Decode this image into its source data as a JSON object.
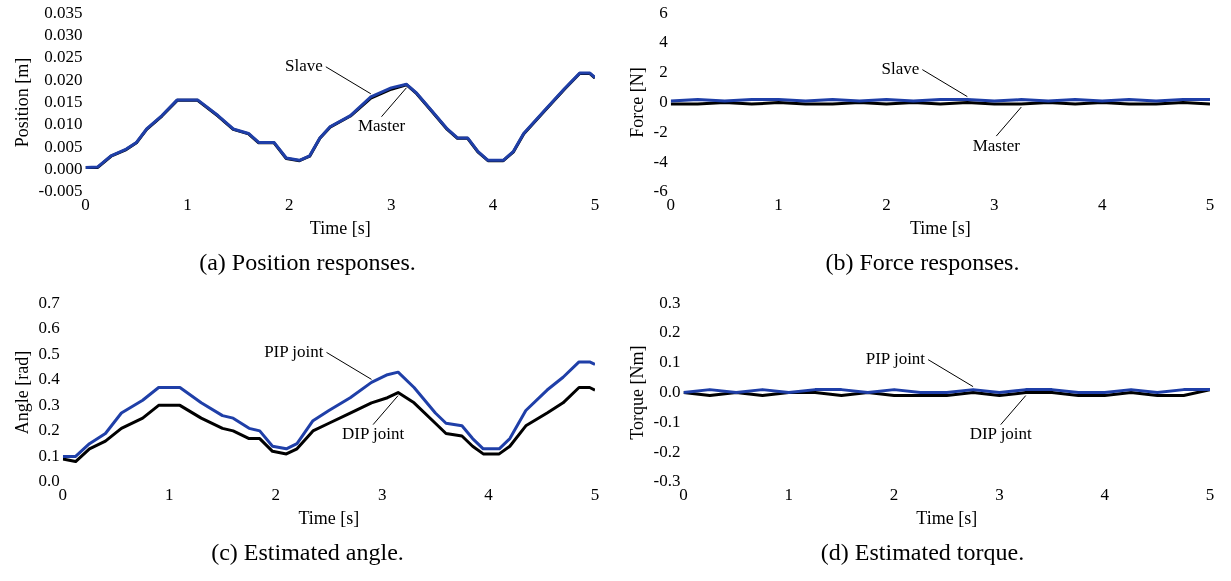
{
  "chart_data": [
    {
      "type": "line",
      "xlabel": "Time [s]",
      "ylabel": "Position [m]",
      "xlim": [
        0,
        5
      ],
      "xticks": [
        0,
        1,
        2,
        3,
        4,
        5
      ],
      "ylim": [
        -0.005,
        0.035
      ],
      "yticks": [
        -0.005,
        {
          "value": 0,
          "label": "0.000"
        },
        0.005,
        {
          "value": 0.01,
          "label": "0.010"
        },
        0.015,
        {
          "value": 0.02,
          "label": "0.020"
        },
        0.025,
        {
          "value": 0.03,
          "label": "0.030"
        },
        0.035
      ],
      "grid": false,
      "x": [
        0,
        0.12,
        0.25,
        0.4,
        0.5,
        0.6,
        0.75,
        0.9,
        1.1,
        1.3,
        1.45,
        1.6,
        1.7,
        1.85,
        1.97,
        2.1,
        2.2,
        2.3,
        2.4,
        2.6,
        2.8,
        3.0,
        3.15,
        3.25,
        3.4,
        3.55,
        3.65,
        3.75,
        3.85,
        3.95,
        4.1,
        4.2,
        4.3,
        4.5,
        4.7,
        4.85,
        4.95,
        5.0
      ],
      "series": [
        {
          "name": "Slave",
          "color": "#1f3fa8",
          "values": [
            0.0005,
            0.0006,
            0.0031,
            0.0046,
            0.0061,
            0.0091,
            0.0121,
            0.0156,
            0.0156,
            0.0121,
            0.0091,
            0.0081,
            0.0061,
            0.0061,
            0.0026,
            0.0021,
            0.0031,
            0.0071,
            0.0096,
            0.0121,
            0.0163,
            0.0183,
            0.0191,
            0.0171,
            0.0131,
            0.0091,
            0.0071,
            0.0071,
            0.0041,
            0.0021,
            0.0021,
            0.0041,
            0.0081,
            0.0131,
            0.0181,
            0.0216,
            0.0216,
            0.0206
          ]
        },
        {
          "name": "Master",
          "color": "#000000",
          "values": [
            0.0005,
            0.0005,
            0.003,
            0.0045,
            0.006,
            0.009,
            0.012,
            0.0155,
            0.0155,
            0.012,
            0.009,
            0.008,
            0.006,
            0.006,
            0.0025,
            0.002,
            0.003,
            0.007,
            0.0095,
            0.012,
            0.016,
            0.018,
            0.019,
            0.017,
            0.013,
            0.009,
            0.007,
            0.007,
            0.004,
            0.002,
            0.002,
            0.004,
            0.008,
            0.013,
            0.018,
            0.0215,
            0.0215,
            0.0205
          ]
        }
      ],
      "annotations": [
        "(a) Position responses."
      ]
    },
    {
      "type": "line",
      "xlabel": "Time [s]",
      "ylabel": "Force [N]",
      "xlim": [
        0,
        5
      ],
      "xticks": [
        0,
        1,
        2,
        3,
        4,
        5
      ],
      "ylim": [
        -6,
        6
      ],
      "yticks": [
        -6,
        -4,
        -2,
        0,
        2,
        4,
        6
      ],
      "grid": false,
      "x": [
        0,
        0.25,
        0.5,
        0.75,
        1,
        1.25,
        1.5,
        1.75,
        2,
        2.25,
        2.5,
        2.75,
        3,
        3.25,
        3.5,
        3.75,
        4,
        4.25,
        4.5,
        4.75,
        5
      ],
      "series": [
        {
          "name": "Slave",
          "color": "#1f3fa8",
          "values": [
            0.1,
            0.2,
            0.1,
            0.2,
            0.2,
            0.1,
            0.2,
            0.1,
            0.2,
            0.1,
            0.2,
            0.2,
            0.1,
            0.2,
            0.1,
            0.2,
            0.1,
            0.2,
            0.1,
            0.2,
            0.2
          ]
        },
        {
          "name": "Master",
          "color": "#000000",
          "values": [
            -0.1,
            -0.1,
            0,
            -0.1,
            0,
            -0.1,
            -0.1,
            0,
            -0.1,
            0,
            -0.1,
            0,
            -0.1,
            -0.1,
            0,
            -0.1,
            0,
            -0.1,
            -0.1,
            0,
            -0.1
          ]
        }
      ],
      "annotations": [
        "(b) Force responses."
      ]
    },
    {
      "type": "line",
      "xlabel": "Time [s]",
      "ylabel": "Angle [rad]",
      "xlim": [
        0,
        5
      ],
      "xticks": [
        0,
        1,
        2,
        3,
        4,
        5
      ],
      "ylim": [
        0,
        0.7
      ],
      "yticks": [
        {
          "value": 0,
          "label": "0.0"
        },
        0.1,
        0.2,
        0.3,
        0.4,
        0.5,
        0.6,
        0.7
      ],
      "grid": false,
      "x": [
        0,
        0.12,
        0.25,
        0.4,
        0.55,
        0.75,
        0.9,
        1.1,
        1.3,
        1.5,
        1.6,
        1.75,
        1.85,
        1.97,
        2.1,
        2.2,
        2.35,
        2.5,
        2.7,
        2.9,
        3.05,
        3.15,
        3.3,
        3.5,
        3.6,
        3.75,
        3.85,
        3.95,
        4.1,
        4.2,
        4.35,
        4.55,
        4.7,
        4.85,
        4.95,
        5.0
      ],
      "series": [
        {
          "name": "PIP joint",
          "color": "#1f3fa8",
          "values": [
            0.1,
            0.1,
            0.15,
            0.19,
            0.27,
            0.32,
            0.37,
            0.37,
            0.31,
            0.26,
            0.25,
            0.21,
            0.2,
            0.14,
            0.13,
            0.15,
            0.24,
            0.28,
            0.33,
            0.39,
            0.42,
            0.43,
            0.37,
            0.27,
            0.23,
            0.22,
            0.17,
            0.13,
            0.13,
            0.17,
            0.28,
            0.36,
            0.41,
            0.47,
            0.47,
            0.46
          ]
        },
        {
          "name": "DIP joint",
          "color": "#000000",
          "values": [
            0.09,
            0.08,
            0.13,
            0.16,
            0.21,
            0.25,
            0.3,
            0.3,
            0.25,
            0.21,
            0.2,
            0.17,
            0.17,
            0.12,
            0.11,
            0.13,
            0.2,
            0.23,
            0.27,
            0.31,
            0.33,
            0.35,
            0.31,
            0.23,
            0.19,
            0.18,
            0.14,
            0.11,
            0.11,
            0.14,
            0.22,
            0.27,
            0.31,
            0.37,
            0.37,
            0.36
          ]
        }
      ],
      "annotations": [
        "(c) Estimated angle."
      ]
    },
    {
      "type": "line",
      "xlabel": "Time [s]",
      "ylabel": "Torque [Nm]",
      "xlim": [
        0,
        5
      ],
      "xticks": [
        0,
        1,
        2,
        3,
        4,
        5
      ],
      "ylim": [
        -0.3,
        0.3
      ],
      "yticks": [
        -0.3,
        -0.2,
        -0.1,
        {
          "value": 0,
          "label": "0.0"
        },
        0.1,
        0.2,
        0.3
      ],
      "grid": false,
      "x": [
        0,
        0.25,
        0.5,
        0.75,
        1,
        1.25,
        1.5,
        1.75,
        2,
        2.25,
        2.5,
        2.75,
        3,
        3.25,
        3.5,
        3.75,
        4,
        4.25,
        4.5,
        4.75,
        5
      ],
      "series": [
        {
          "name": "PIP joint",
          "color": "#1f3fa8",
          "values": [
            0,
            0.01,
            0,
            0.01,
            0,
            0.01,
            0.01,
            0,
            0.01,
            0,
            0,
            0.01,
            0,
            0.01,
            0.01,
            0,
            0,
            0.01,
            0,
            0.01,
            0.01
          ]
        },
        {
          "name": "DIP joint",
          "color": "#000000",
          "values": [
            0,
            -0.01,
            0,
            -0.01,
            0,
            0,
            -0.01,
            0,
            -0.01,
            -0.01,
            -0.01,
            0,
            -0.01,
            0,
            0,
            -0.01,
            -0.01,
            0,
            -0.01,
            -0.01,
            0.01
          ]
        }
      ],
      "annotations": [
        "(d) Estimated torque."
      ]
    }
  ]
}
